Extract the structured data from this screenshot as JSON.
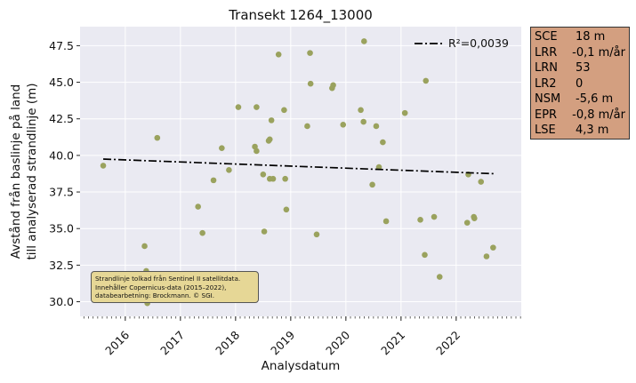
{
  "chart_data": {
    "type": "scatter",
    "title": "Transekt 1264_13000",
    "xlabel": "Analysdatum",
    "ylabel_lines": [
      "Avstånd från baslinje på land",
      "till analyserad strandlinje (m)"
    ],
    "x_ticks": [
      "2016",
      "2017",
      "2018",
      "2019",
      "2020",
      "2021",
      "2022"
    ],
    "y_ticks": [
      "30.0",
      "32.5",
      "35.0",
      "37.5",
      "40.0",
      "42.5",
      "45.0",
      "47.5"
    ],
    "xlim": [
      2015.18,
      2023.18
    ],
    "ylim": [
      29.0,
      48.8
    ],
    "grid": true,
    "legend_position": "top-right",
    "point_color": "#9aa25e",
    "trend_color": "#000000",
    "plot_background": "#eaeaf2",
    "trend": {
      "label": "R²=0,0039",
      "x": [
        2015.6,
        2022.68
      ],
      "y": [
        39.75,
        38.75
      ]
    },
    "points": [
      {
        "x": 2015.6,
        "y": 39.3
      },
      {
        "x": 2016.35,
        "y": 33.8
      },
      {
        "x": 2016.38,
        "y": 32.1
      },
      {
        "x": 2016.4,
        "y": 29.9
      },
      {
        "x": 2016.58,
        "y": 41.2
      },
      {
        "x": 2017.32,
        "y": 36.5
      },
      {
        "x": 2017.4,
        "y": 34.7
      },
      {
        "x": 2017.6,
        "y": 38.3
      },
      {
        "x": 2017.75,
        "y": 40.5
      },
      {
        "x": 2017.88,
        "y": 39.0
      },
      {
        "x": 2018.05,
        "y": 43.3
      },
      {
        "x": 2018.35,
        "y": 40.6
      },
      {
        "x": 2018.38,
        "y": 40.3
      },
      {
        "x": 2018.38,
        "y": 43.3
      },
      {
        "x": 2018.5,
        "y": 38.7
      },
      {
        "x": 2018.52,
        "y": 34.8
      },
      {
        "x": 2018.6,
        "y": 41.0
      },
      {
        "x": 2018.62,
        "y": 41.1
      },
      {
        "x": 2018.62,
        "y": 38.4
      },
      {
        "x": 2018.65,
        "y": 42.4
      },
      {
        "x": 2018.68,
        "y": 38.4
      },
      {
        "x": 2018.78,
        "y": 46.9
      },
      {
        "x": 2018.88,
        "y": 43.1
      },
      {
        "x": 2018.9,
        "y": 38.4
      },
      {
        "x": 2018.92,
        "y": 36.3
      },
      {
        "x": 2019.3,
        "y": 42.0
      },
      {
        "x": 2019.35,
        "y": 47.0
      },
      {
        "x": 2019.36,
        "y": 44.9
      },
      {
        "x": 2019.47,
        "y": 34.6
      },
      {
        "x": 2019.75,
        "y": 44.6
      },
      {
        "x": 2019.77,
        "y": 44.8
      },
      {
        "x": 2019.95,
        "y": 42.1
      },
      {
        "x": 2020.27,
        "y": 43.1
      },
      {
        "x": 2020.32,
        "y": 42.3
      },
      {
        "x": 2020.33,
        "y": 47.8
      },
      {
        "x": 2020.48,
        "y": 38.0
      },
      {
        "x": 2020.55,
        "y": 42.0
      },
      {
        "x": 2020.6,
        "y": 39.2
      },
      {
        "x": 2020.67,
        "y": 40.9
      },
      {
        "x": 2020.73,
        "y": 35.5
      },
      {
        "x": 2021.07,
        "y": 42.9
      },
      {
        "x": 2021.35,
        "y": 35.6
      },
      {
        "x": 2021.43,
        "y": 33.2
      },
      {
        "x": 2021.45,
        "y": 45.1
      },
      {
        "x": 2021.6,
        "y": 35.8
      },
      {
        "x": 2021.7,
        "y": 31.7
      },
      {
        "x": 2022.2,
        "y": 35.4
      },
      {
        "x": 2022.22,
        "y": 38.7
      },
      {
        "x": 2022.32,
        "y": 35.8
      },
      {
        "x": 2022.33,
        "y": 35.7
      },
      {
        "x": 2022.45,
        "y": 38.2
      },
      {
        "x": 2022.55,
        "y": 33.1
      },
      {
        "x": 2022.67,
        "y": 33.7
      }
    ]
  },
  "stats": [
    {
      "key": "SCE",
      "value": "18 m"
    },
    {
      "key": "LRR",
      "value": "-0,1 m/år"
    },
    {
      "key": "LRN",
      "value": "53"
    },
    {
      "key": "LR2",
      "value": "0"
    },
    {
      "key": "NSM",
      "value": "-5,6 m"
    },
    {
      "key": "EPR",
      "value": "-0,8 m/år"
    },
    {
      "key": "LSE",
      "value": "4,3 m"
    }
  ],
  "credit": {
    "line1": "Strandlinje tolkad från Sentinel II satellitdata.",
    "line2": "Innehåller Copernicus-data (2015–2022),",
    "line3": "databearbetning: Brockmann. © SGI."
  }
}
